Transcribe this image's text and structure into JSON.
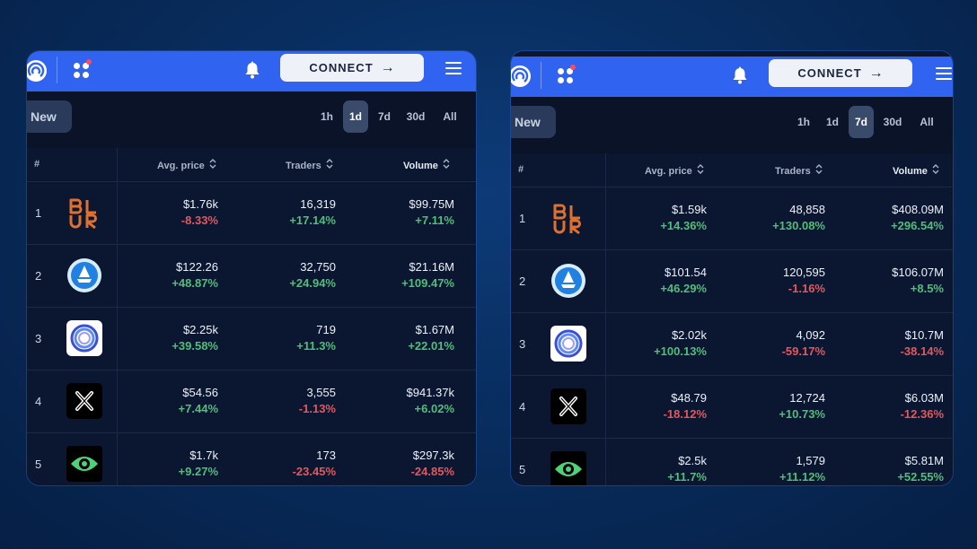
{
  "panels": [
    {
      "connect_label": "CONNECT",
      "new_label": "New",
      "periods": [
        "1h",
        "1d",
        "7d",
        "30d",
        "All"
      ],
      "active_period": "1d",
      "columns": {
        "rank": "#",
        "avg_price": "Avg. price",
        "traders": "Traders",
        "volume": "Volume"
      },
      "rows": [
        {
          "rank": "1",
          "icon": "blur-logo",
          "price": "$1.76k",
          "price_change": "-8.33%",
          "traders": "16,319",
          "traders_change": "+17.14%",
          "volume": "$99.75M",
          "volume_change": "+7.11%"
        },
        {
          "rank": "2",
          "icon": "opensea-logo",
          "price": "$122.26",
          "price_change": "+48.87%",
          "traders": "32,750",
          "traders_change": "+24.94%",
          "volume": "$21.16M",
          "volume_change": "+109.47%"
        },
        {
          "rank": "3",
          "icon": "ring-logo",
          "price": "$2.25k",
          "price_change": "+39.58%",
          "traders": "719",
          "traders_change": "+11.3%",
          "volume": "$1.67M",
          "volume_change": "+22.01%"
        },
        {
          "rank": "4",
          "icon": "x2y2-logo",
          "price": "$54.56",
          "price_change": "+7.44%",
          "traders": "3,555",
          "traders_change": "-1.13%",
          "volume": "$941.37k",
          "volume_change": "+6.02%"
        },
        {
          "rank": "5",
          "icon": "eye-logo",
          "price": "$1.7k",
          "price_change": "+9.27%",
          "traders": "173",
          "traders_change": "-23.45%",
          "volume": "$297.3k",
          "volume_change": "-24.85%"
        }
      ]
    },
    {
      "connect_label": "CONNECT",
      "new_label": "New",
      "periods": [
        "1h",
        "1d",
        "7d",
        "30d",
        "All"
      ],
      "active_period": "7d",
      "columns": {
        "rank": "#",
        "avg_price": "Avg. price",
        "traders": "Traders",
        "volume": "Volume"
      },
      "rows": [
        {
          "rank": "1",
          "icon": "blur-logo",
          "price": "$1.59k",
          "price_change": "+14.36%",
          "traders": "48,858",
          "traders_change": "+130.08%",
          "volume": "$408.09M",
          "volume_change": "+296.54%"
        },
        {
          "rank": "2",
          "icon": "opensea-logo",
          "price": "$101.54",
          "price_change": "+46.29%",
          "traders": "120,595",
          "traders_change": "-1.16%",
          "volume": "$106.07M",
          "volume_change": "+8.5%"
        },
        {
          "rank": "3",
          "icon": "ring-logo",
          "price": "$2.02k",
          "price_change": "+100.13%",
          "traders": "4,092",
          "traders_change": "-59.17%",
          "volume": "$10.7M",
          "volume_change": "-38.14%"
        },
        {
          "rank": "4",
          "icon": "x2y2-logo",
          "price": "$48.79",
          "price_change": "-18.12%",
          "traders": "12,724",
          "traders_change": "+10.73%",
          "volume": "$6.03M",
          "volume_change": "-12.36%"
        },
        {
          "rank": "5",
          "icon": "eye-logo",
          "price": "$2.5k",
          "price_change": "+11.7%",
          "traders": "1,579",
          "traders_change": "+11.12%",
          "volume": "$5.81M",
          "volume_change": "+52.55%"
        }
      ]
    }
  ],
  "colors": {
    "topbar": "#2f63f0",
    "positive": "#4fbf79",
    "negative": "#e5575c",
    "panel": "#0b1630",
    "blur": "#e0702e",
    "opensea": "#2081e2"
  },
  "icons": {
    "logo": "app-logo-icon",
    "apps": "apps-grid-icon",
    "bell": "bell-icon",
    "menu": "hamburger-menu-icon",
    "sort": "sort-icon"
  }
}
